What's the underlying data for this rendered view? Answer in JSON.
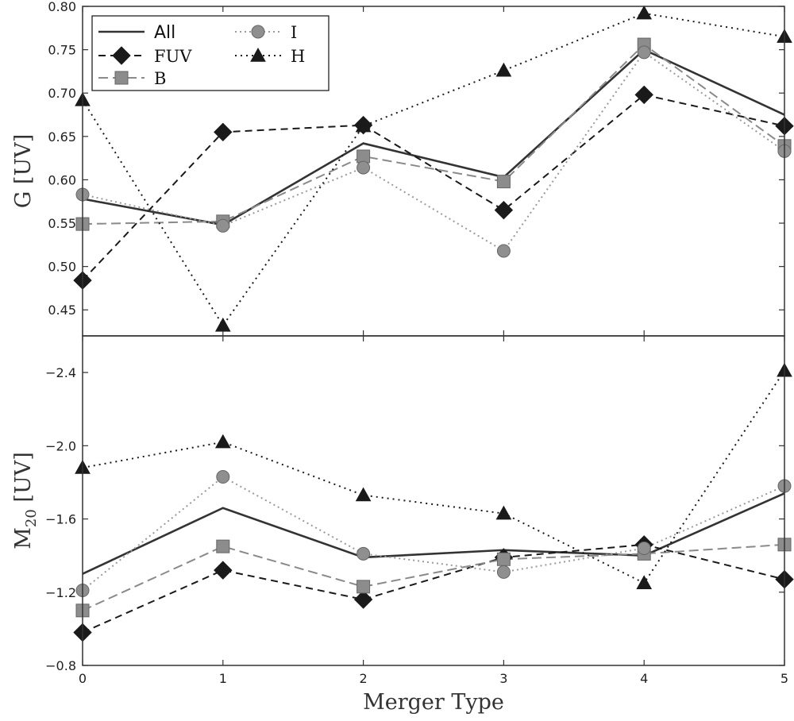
{
  "chart_data": [
    {
      "type": "line",
      "panel": "top",
      "ylabel": "G [UV]",
      "ylim": [
        0.42,
        0.8
      ],
      "yticks": [
        0.45,
        0.5,
        0.55,
        0.6,
        0.65,
        0.7,
        0.75,
        0.8
      ],
      "ytick_labels": [
        "0.45",
        "0.50",
        "0.55",
        "0.60",
        "0.65",
        "0.70",
        "0.75",
        "0.80"
      ],
      "x": [
        0,
        1,
        2,
        3,
        4,
        5
      ],
      "series": [
        {
          "name": "All",
          "color": "#333333",
          "dash": "",
          "marker": "none",
          "values": [
            0.578,
            0.548,
            0.642,
            0.603,
            0.75,
            0.675
          ]
        },
        {
          "name": "FUV",
          "color": "#1a1a1a",
          "dash": "9,6",
          "marker": "diamond",
          "values": [
            0.484,
            0.655,
            0.663,
            0.565,
            0.698,
            0.662
          ]
        },
        {
          "name": "B",
          "color": "#8a8a8a",
          "dash": "12,6",
          "marker": "square",
          "values": [
            0.549,
            0.552,
            0.627,
            0.598,
            0.756,
            0.639
          ]
        },
        {
          "name": "I",
          "color": "#9a9a9a",
          "dash": "2,4",
          "marker": "circle",
          "values": [
            0.583,
            0.547,
            0.614,
            0.518,
            0.747,
            0.633
          ]
        },
        {
          "name": "H",
          "color": "#1a1a1a",
          "dash": "2,5",
          "marker": "triangle",
          "values": [
            0.692,
            0.432,
            0.662,
            0.726,
            0.792,
            0.765
          ]
        }
      ]
    },
    {
      "type": "line",
      "panel": "bottom",
      "ylabel": "M20 [UV]",
      "ylabel_main": "M",
      "ylabel_sub": "20",
      "ylabel_suffix": " [UV]",
      "ylim": [
        -0.8,
        -2.6
      ],
      "yticks": [
        -0.8,
        -1.2,
        -1.6,
        -2.0,
        -2.4
      ],
      "ytick_labels": [
        "−0.8",
        "−1.2",
        "−1.6",
        "−2.0",
        "−2.4"
      ],
      "xlabel": "Merger Type",
      "xticks": [
        0,
        1,
        2,
        3,
        4,
        5
      ],
      "xtick_labels": [
        "0",
        "1",
        "2",
        "3",
        "4",
        "5"
      ],
      "x": [
        0,
        1,
        2,
        3,
        4,
        5
      ],
      "series": [
        {
          "name": "All",
          "color": "#333333",
          "dash": "",
          "marker": "none",
          "values": [
            -1.3,
            -1.66,
            -1.39,
            -1.43,
            -1.4,
            -1.74
          ]
        },
        {
          "name": "FUV",
          "color": "#1a1a1a",
          "dash": "9,6",
          "marker": "diamond",
          "values": [
            -0.98,
            -1.32,
            -1.16,
            -1.39,
            -1.46,
            -1.27
          ]
        },
        {
          "name": "B",
          "color": "#8a8a8a",
          "dash": "12,6",
          "marker": "square",
          "values": [
            -1.1,
            -1.45,
            -1.23,
            -1.38,
            -1.41,
            -1.46
          ]
        },
        {
          "name": "I",
          "color": "#9a9a9a",
          "dash": "2,4",
          "marker": "circle",
          "values": [
            -1.21,
            -1.83,
            -1.41,
            -1.31,
            -1.44,
            -1.78
          ]
        },
        {
          "name": "H",
          "color": "#1a1a1a",
          "dash": "2,5",
          "marker": "triangle",
          "values": [
            -1.88,
            -2.02,
            -1.73,
            -1.63,
            -1.25,
            -2.41
          ]
        }
      ]
    }
  ],
  "legend": {
    "placement": "top-left",
    "entries": [
      "All",
      "FUV",
      "B",
      "I",
      "H"
    ]
  }
}
